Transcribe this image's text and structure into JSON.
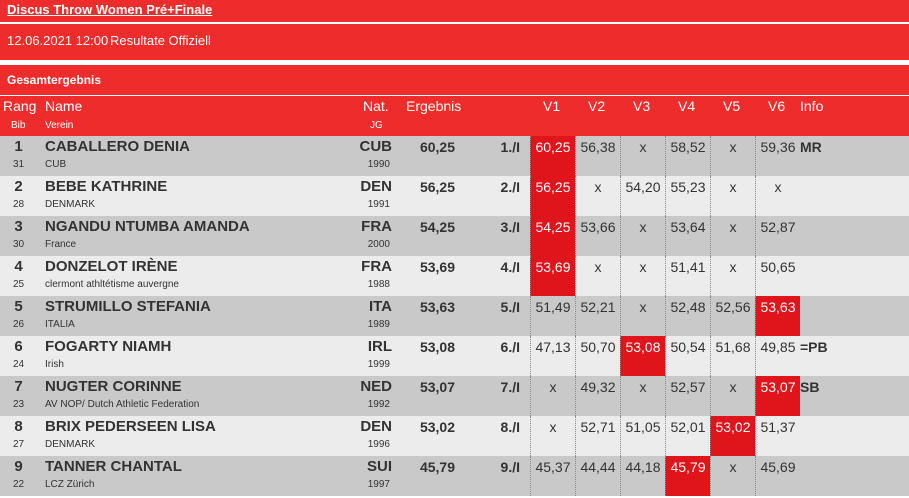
{
  "event_title": "Discus Throw Women Pré+Finale",
  "event_info": {
    "datetime": "12.06.2021 12:00",
    "status": "Resultate Offiziell"
  },
  "section_title": "Gesamtergebnis",
  "columns": {
    "rank": "Rang",
    "bib": "Bib",
    "name": "Name",
    "club": "Verein",
    "nat": "Nat.",
    "birth": "JG",
    "result": "Ergebnis",
    "v1": "V1",
    "v2": "V2",
    "v3": "V3",
    "v4": "V4",
    "v5": "V5",
    "v6": "V6",
    "info": "Info"
  },
  "colors": {
    "accent_red": "#ee2c2c",
    "best_attempt": "#e0141b",
    "row_dark": "#c9c9c9",
    "row_light": "#ececec"
  },
  "rows": [
    {
      "rank": "1",
      "bib": "31",
      "name": "CABALLERO DENIA",
      "club": "CUB",
      "nat": "CUB",
      "year": "1990",
      "result": "60,25",
      "place": "1./I",
      "attempts": [
        "60,25",
        "56,38",
        "x",
        "58,52",
        "x",
        "59,36"
      ],
      "best": 0,
      "info": "MR"
    },
    {
      "rank": "2",
      "bib": "28",
      "name": "BEBE KATHRINE",
      "club": "DENMARK",
      "nat": "DEN",
      "year": "1991",
      "result": "56,25",
      "place": "2./I",
      "attempts": [
        "56,25",
        "x",
        "54,20",
        "55,23",
        "x",
        "x"
      ],
      "best": 0,
      "info": ""
    },
    {
      "rank": "3",
      "bib": "30",
      "name": "NGANDU NTUMBA AMANDA",
      "club": "France",
      "nat": "FRA",
      "year": "2000",
      "result": "54,25",
      "place": "3./I",
      "attempts": [
        "54,25",
        "53,66",
        "x",
        "53,64",
        "x",
        "52,87"
      ],
      "best": 0,
      "info": ""
    },
    {
      "rank": "4",
      "bib": "25",
      "name": "DONZELOT IRÈNE",
      "club": "clermont athltétisme auvergne",
      "nat": "FRA",
      "year": "1988",
      "result": "53,69",
      "place": "4./I",
      "attempts": [
        "53,69",
        "x",
        "x",
        "51,41",
        "x",
        "50,65"
      ],
      "best": 0,
      "info": ""
    },
    {
      "rank": "5",
      "bib": "26",
      "name": "STRUMILLO STEFANIA",
      "club": "ITALIA",
      "nat": "ITA",
      "year": "1989",
      "result": "53,63",
      "place": "5./I",
      "attempts": [
        "51,49",
        "52,21",
        "x",
        "52,48",
        "52,56",
        "53,63"
      ],
      "best": 5,
      "info": ""
    },
    {
      "rank": "6",
      "bib": "24",
      "name": "FOGARTY NIAMH",
      "club": "Irish",
      "nat": "IRL",
      "year": "1999",
      "result": "53,08",
      "place": "6./I",
      "attempts": [
        "47,13",
        "50,70",
        "53,08",
        "50,54",
        "51,68",
        "49,85"
      ],
      "best": 2,
      "info": "=PB"
    },
    {
      "rank": "7",
      "bib": "23",
      "name": "NUGTER CORINNE",
      "club": "AV NOP/ Dutch Athletic Federation",
      "nat": "NED",
      "year": "1992",
      "result": "53,07",
      "place": "7./I",
      "attempts": [
        "x",
        "49,32",
        "x",
        "52,57",
        "x",
        "53,07"
      ],
      "best": 5,
      "info": "SB"
    },
    {
      "rank": "8",
      "bib": "27",
      "name": "BRIX PEDERSEEN LISA",
      "club": "DENMARK",
      "nat": "DEN",
      "year": "1996",
      "result": "53,02",
      "place": "8./I",
      "attempts": [
        "x",
        "52,71",
        "51,05",
        "52,01",
        "53,02",
        "51,37"
      ],
      "best": 4,
      "info": ""
    },
    {
      "rank": "9",
      "bib": "22",
      "name": "TANNER CHANTAL",
      "club": "LCZ Zürich",
      "nat": "SUI",
      "year": "1997",
      "result": "45,79",
      "place": "9./I",
      "attempts": [
        "45,37",
        "44,44",
        "44,18",
        "45,79",
        "x",
        "45,69"
      ],
      "best": 3,
      "info": ""
    }
  ]
}
